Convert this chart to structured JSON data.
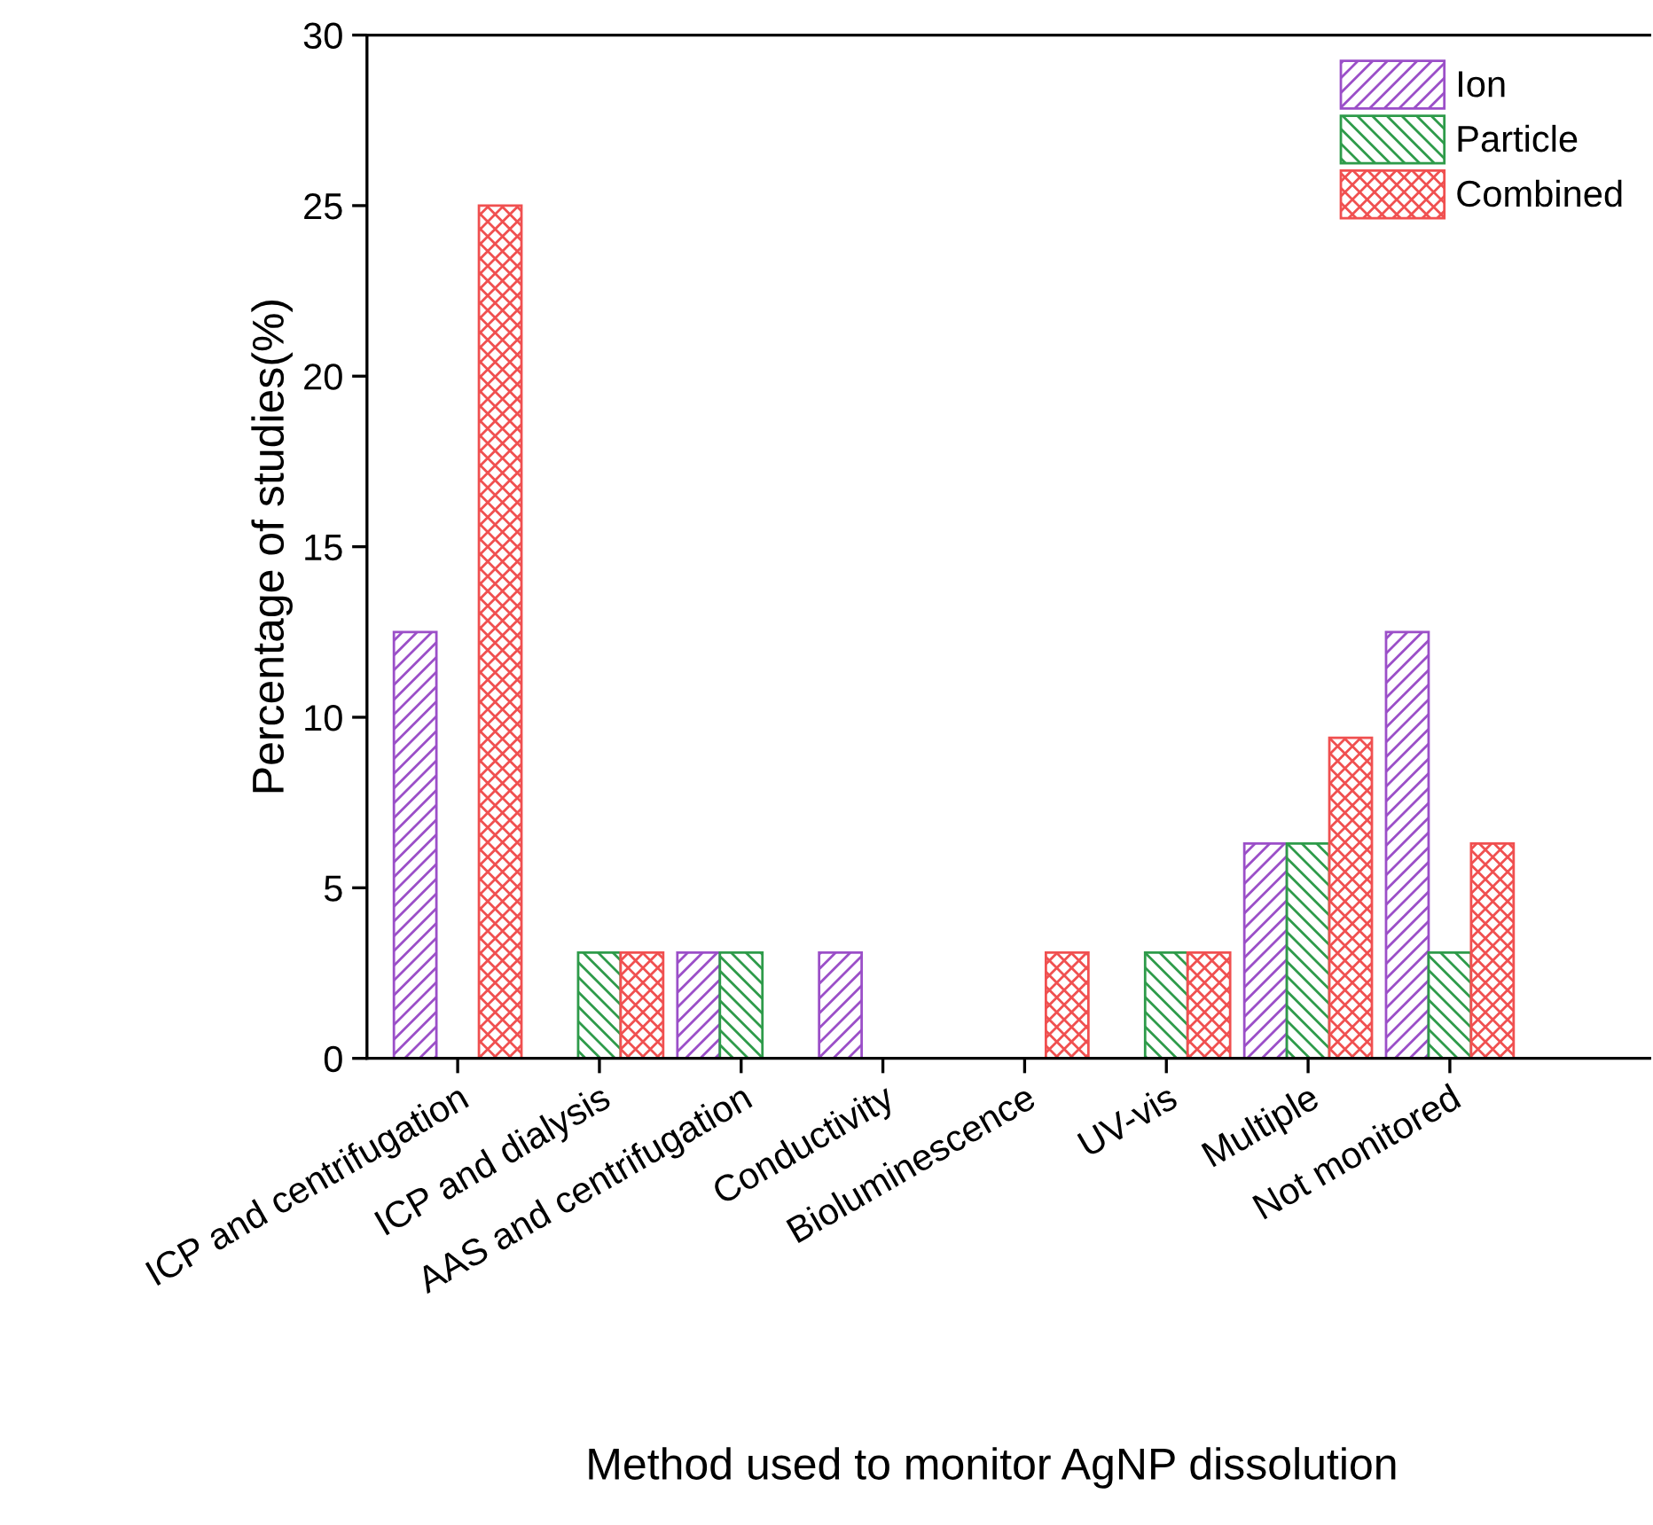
{
  "chart_data": {
    "type": "bar",
    "xlabel": "Method used to monitor AgNP dissolution",
    "ylabel": "Percentage of studies(%)",
    "categories": [
      "ICP and centrifugation",
      "ICP and dialysis",
      "AAS and centrifugation",
      "Conductivity",
      "Bioluminescence",
      "UV-vis",
      "Multiple",
      "Not monitored"
    ],
    "series": [
      {
        "name": "Ion",
        "color": "#9b4fc8",
        "values": [
          12.5,
          0,
          3.1,
          3.1,
          0,
          0,
          6.3,
          12.5
        ]
      },
      {
        "name": "Particle",
        "color": "#2e9b4a",
        "values": [
          0,
          3.1,
          3.1,
          0,
          0,
          3.1,
          6.3,
          3.1
        ]
      },
      {
        "name": "Combined",
        "color": "#f05050",
        "values": [
          25,
          3.1,
          0,
          0,
          3.1,
          3.1,
          9.4,
          6.3
        ]
      }
    ],
    "ylim": [
      0,
      30
    ],
    "yticks": [
      0,
      5,
      10,
      15,
      20,
      25,
      30
    ],
    "grid": false,
    "legend": "top right"
  }
}
